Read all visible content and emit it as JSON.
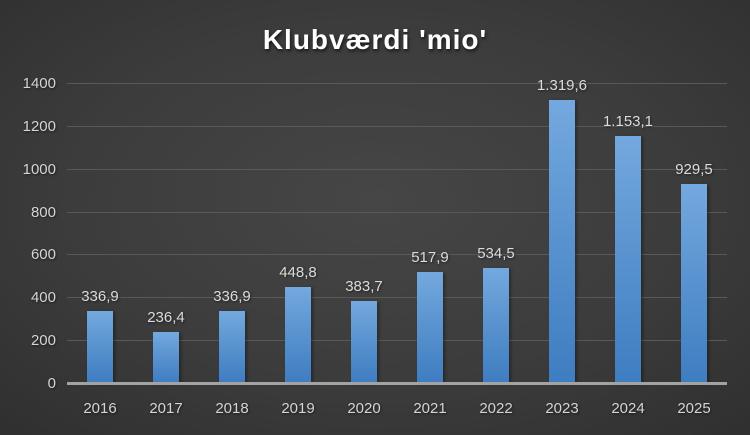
{
  "chart_data": {
    "type": "bar",
    "title": "Klubværdi 'mio'",
    "categories": [
      "2016",
      "2017",
      "2018",
      "2019",
      "2020",
      "2021",
      "2022",
      "2023",
      "2024",
      "2025"
    ],
    "values": [
      336.9,
      236.4,
      336.9,
      448.8,
      383.7,
      517.9,
      534.5,
      1319.6,
      1153.1,
      929.5
    ],
    "value_labels": [
      "336,9",
      "236,4",
      "336,9",
      "448,8",
      "383,7",
      "517,9",
      "534,5",
      "1.319,6",
      "1.153,1",
      "929,5"
    ],
    "xlabel": "",
    "ylabel": "",
    "ylim": [
      0,
      1400
    ],
    "ytick_step": 200,
    "ytick_labels": [
      "0",
      "200",
      "400",
      "600",
      "800",
      "1000",
      "1200",
      "1400"
    ],
    "grid": true,
    "legend_position": "none",
    "colors": {
      "bar_gradient_top": "#74a9df",
      "bar_gradient_bottom": "#3e7dc1",
      "background_center": "#464646",
      "background_edge": "#222222",
      "gridline": "#595959",
      "axis_line": "#a3a3a3",
      "tick_text": "#d4d4d4",
      "value_text": "#dcdcdc",
      "title_text": "#ffffff"
    }
  }
}
